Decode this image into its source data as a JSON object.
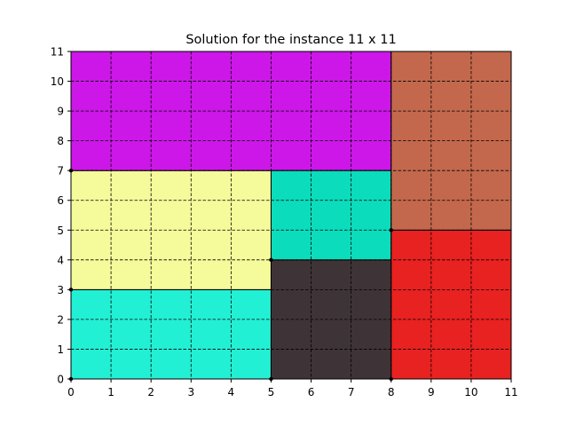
{
  "chart_data": {
    "type": "rectangle-packing",
    "title": "Solution for the instance 11 x 11",
    "xlabel": "",
    "ylabel": "",
    "xlim": [
      0,
      11
    ],
    "ylim": [
      0,
      11
    ],
    "grid": true,
    "xticks": [
      "0",
      "1",
      "2",
      "3",
      "4",
      "5",
      "6",
      "7",
      "8",
      "9",
      "10",
      "11"
    ],
    "yticks": [
      "0",
      "1",
      "2",
      "3",
      "4",
      "5",
      "6",
      "7",
      "8",
      "9",
      "10",
      "11"
    ],
    "rectangles": [
      {
        "x": 0,
        "y": 0,
        "width": 5,
        "height": 3,
        "color": "#22f0d4"
      },
      {
        "x": 0,
        "y": 3,
        "width": 5,
        "height": 4,
        "color": "#f5fa9a"
      },
      {
        "x": 0,
        "y": 7,
        "width": 8,
        "height": 4,
        "color": "#cc17e8"
      },
      {
        "x": 5,
        "y": 0,
        "width": 3,
        "height": 4,
        "color": "#3e3437"
      },
      {
        "x": 5,
        "y": 4,
        "width": 3,
        "height": 3,
        "color": "#0bdcbc"
      },
      {
        "x": 8,
        "y": 0,
        "width": 3,
        "height": 5,
        "color": "#e82121"
      },
      {
        "x": 8,
        "y": 5,
        "width": 3,
        "height": 6,
        "color": "#c3684d"
      }
    ],
    "origin_markers": [
      [
        0,
        0
      ],
      [
        0,
        3
      ],
      [
        0,
        7
      ],
      [
        5,
        0
      ],
      [
        5,
        4
      ],
      [
        8,
        0
      ],
      [
        8,
        5
      ]
    ]
  }
}
